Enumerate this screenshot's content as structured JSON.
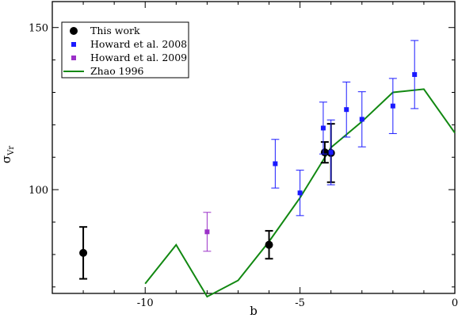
{
  "chart_data": {
    "type": "scatter",
    "xlabel": "b",
    "ylabel": "σ",
    "ylabel_sub": "Vr",
    "xlim": [
      -13,
      0
    ],
    "ylim": [
      68,
      158
    ],
    "x_ticks": [
      -10,
      -5,
      0
    ],
    "x_tick_labels": [
      "-10",
      "-5",
      "0"
    ],
    "y_ticks": [
      100,
      150
    ],
    "y_tick_labels": [
      "100",
      "150"
    ],
    "grid": false,
    "legend": {
      "placement": "top-left",
      "entries": [
        {
          "label": "This work",
          "marker": "circle",
          "color": "#000000"
        },
        {
          "label": "Howard et al. 2008",
          "marker": "square",
          "color": "#1a1aff"
        },
        {
          "label": "Howard et al. 2009",
          "marker": "square",
          "color": "#9b30c8"
        },
        {
          "label": "Zhao 1996",
          "marker": "line",
          "color": "#118811"
        }
      ]
    },
    "series": [
      {
        "name": "This work",
        "type": "scatter",
        "marker": "circle",
        "color": "#000000",
        "points": [
          {
            "x": -12.0,
            "y": 80.5,
            "err": 8.0
          },
          {
            "x": -6.0,
            "y": 83.0,
            "err": 4.3
          },
          {
            "x": -4.2,
            "y": 111.5,
            "err": 3.2
          },
          {
            "x": -4.0,
            "y": 111.3,
            "err": 9.0
          }
        ]
      },
      {
        "name": "Howard et al. 2008",
        "type": "scatter",
        "marker": "square",
        "color": "#1a1aff",
        "points": [
          {
            "x": -5.8,
            "y": 108.0,
            "err": 7.5
          },
          {
            "x": -5.0,
            "y": 99.0,
            "err": 7.0
          },
          {
            "x": -4.25,
            "y": 119.0,
            "err": 8.0
          },
          {
            "x": -4.0,
            "y": 111.5,
            "err": 10.0
          },
          {
            "x": -3.5,
            "y": 124.7,
            "err": 8.5
          },
          {
            "x": -3.0,
            "y": 121.7,
            "err": 8.5
          },
          {
            "x": -2.0,
            "y": 125.8,
            "err": 8.5
          },
          {
            "x": -1.3,
            "y": 135.5,
            "err": 10.5
          }
        ]
      },
      {
        "name": "Howard et al. 2009",
        "type": "scatter",
        "marker": "square",
        "color": "#9b30c8",
        "points": [
          {
            "x": -8.0,
            "y": 87.0,
            "err": 6.0
          }
        ]
      },
      {
        "name": "Zhao 1996",
        "type": "line",
        "color": "#118811",
        "points": [
          {
            "x": -10.0,
            "y": 71.0
          },
          {
            "x": -9.0,
            "y": 83.0
          },
          {
            "x": -8.0,
            "y": 67.0
          },
          {
            "x": -7.0,
            "y": 72.0
          },
          {
            "x": -6.0,
            "y": 84.0
          },
          {
            "x": -5.0,
            "y": 97.5
          },
          {
            "x": -4.0,
            "y": 113.0
          },
          {
            "x": -3.0,
            "y": 121.0
          },
          {
            "x": -2.0,
            "y": 130.0
          },
          {
            "x": -1.0,
            "y": 131.0
          },
          {
            "x": 0.0,
            "y": 117.5
          }
        ]
      }
    ]
  }
}
